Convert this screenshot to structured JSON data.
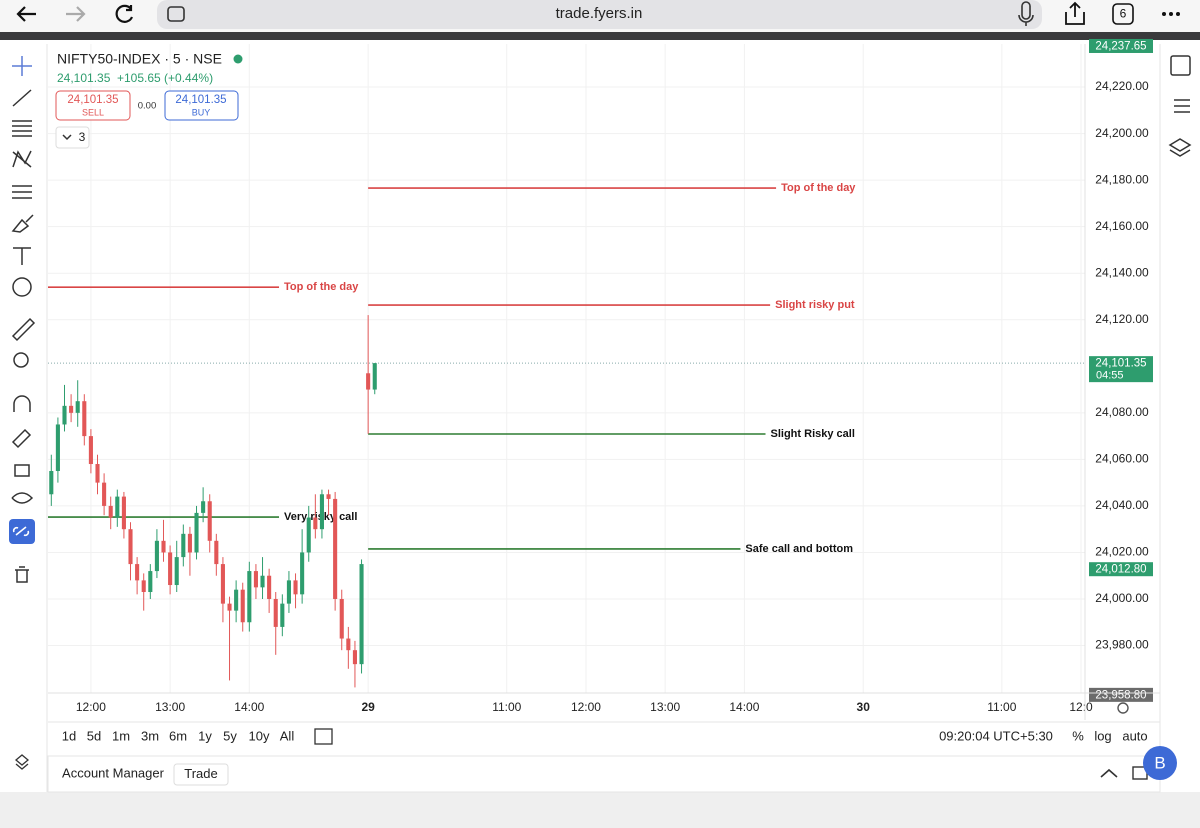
{
  "browser": {
    "url": "trade.fyers.in",
    "tabs": "6"
  },
  "header": {
    "symbol": "NIFTY50-INDEX · 5 · NSE",
    "last": "24,101.35",
    "change": "+105.65 (+0.44%)",
    "sell_price": "24,101.35",
    "sell_label": "SELL",
    "spread": "0.00",
    "buy_price": "24,101.35",
    "buy_label": "BUY",
    "indicators": "3"
  },
  "chart": {
    "type": "candlestick",
    "up_color": "#2e9d6e",
    "down_color": "#e25757",
    "xlim": [
      -48.5,
      108.6
    ],
    "ylim": [
      23959.6,
      24238.5
    ],
    "grid": true,
    "xticks": [
      {
        "value": -42,
        "label": "12:00"
      },
      {
        "value": -30,
        "label": "13:00"
      },
      {
        "value": -18,
        "label": "14:00"
      },
      {
        "value": 0,
        "label": "29"
      },
      {
        "value": 21,
        "label": "11:00"
      },
      {
        "value": 33,
        "label": "12:00"
      },
      {
        "value": 45,
        "label": "13:00"
      },
      {
        "value": 57,
        "label": "14:00"
      },
      {
        "value": 75,
        "label": "30"
      },
      {
        "value": 96,
        "label": "11:00"
      },
      {
        "value": 108,
        "label": "12:0"
      }
    ],
    "yticks": [
      {
        "value": 23980,
        "label": "23,980.00"
      },
      {
        "value": 24000,
        "label": "24,000.00"
      },
      {
        "value": 24020,
        "label": "24,020.00"
      },
      {
        "value": 24040,
        "label": "24,040.00"
      },
      {
        "value": 24060,
        "label": "24,060.00"
      },
      {
        "value": 24080,
        "label": "24,080.00"
      },
      {
        "value": 24120,
        "label": "24,120.00"
      },
      {
        "value": 24140,
        "label": "24,140.00"
      },
      {
        "value": 24160,
        "label": "24,160.00"
      },
      {
        "value": 24180,
        "label": "24,180.00"
      },
      {
        "value": 24200,
        "label": "24,200.00"
      },
      {
        "value": 24220,
        "label": "24,220.00"
      }
    ],
    "price_labels": [
      {
        "value": 24237.65,
        "label": "24,237.65",
        "color": "#2e9d6e"
      },
      {
        "value": 24101.35,
        "label": "24,101.35",
        "sub": "04:55",
        "color": "#2e9d6e"
      },
      {
        "value": 24012.8,
        "label": "24,012.80",
        "color": "#2e9d6e"
      },
      {
        "value": 23958.8,
        "label": "23,958.80",
        "color": "#6b6b6b"
      }
    ],
    "last_price": 24101.35,
    "candles": [
      [
        -48,
        24045,
        24062,
        24040,
        24055
      ],
      [
        -47,
        24055,
        24078,
        24050,
        24075
      ],
      [
        -46,
        24075,
        24092,
        24072,
        24083
      ],
      [
        -45,
        24083,
        24088,
        24076,
        24080
      ],
      [
        -44,
        24080,
        24094,
        24074,
        24085
      ],
      [
        -43,
        24085,
        24088,
        24066,
        24070
      ],
      [
        -42,
        24070,
        24073,
        24054,
        24058
      ],
      [
        -41,
        24058,
        24062,
        24045,
        24050
      ],
      [
        -40,
        24050,
        24054,
        24036,
        24040
      ],
      [
        -39,
        24040,
        24044,
        24030,
        24035
      ],
      [
        -38,
        24035,
        24047,
        24031,
        24044
      ],
      [
        -37,
        24044,
        24046,
        24026,
        24030
      ],
      [
        -36,
        24030,
        24033,
        24008,
        24015
      ],
      [
        -35,
        24015,
        24018,
        24002,
        24008
      ],
      [
        -34,
        24008,
        24011,
        23995,
        24003
      ],
      [
        -33,
        24003,
        24015,
        24000,
        24012
      ],
      [
        -32,
        24012,
        24030,
        24009,
        24025
      ],
      [
        -31,
        24025,
        24034,
        24016,
        24020
      ],
      [
        -30,
        24020,
        24023,
        24002,
        24006
      ],
      [
        -29,
        24006,
        24025,
        24003,
        24018
      ],
      [
        -28,
        24018,
        24032,
        24014,
        24028
      ],
      [
        -27,
        24028,
        24031,
        24010,
        24020
      ],
      [
        -26,
        24020,
        24040,
        24017,
        24037
      ],
      [
        -25,
        24037,
        24048,
        24033,
        24042
      ],
      [
        -24,
        24042,
        24045,
        24020,
        24025
      ],
      [
        -23,
        24025,
        24028,
        24010,
        24015
      ],
      [
        -22,
        24015,
        24018,
        23990,
        23998
      ],
      [
        -21,
        23998,
        24001,
        23965,
        23995
      ],
      [
        -20,
        23995,
        24008,
        23990,
        24004
      ],
      [
        -19,
        24004,
        24007,
        23986,
        23990
      ],
      [
        -18,
        23990,
        24016,
        23986,
        24012
      ],
      [
        -17,
        24012,
        24015,
        24000,
        24005
      ],
      [
        -16,
        24005,
        24018,
        24000,
        24010
      ],
      [
        -15,
        24010,
        24013,
        23994,
        24000
      ],
      [
        -14,
        24000,
        24003,
        23976,
        23988
      ],
      [
        -13,
        23988,
        24002,
        23984,
        23998
      ],
      [
        -12,
        23998,
        24012,
        23994,
        24008
      ],
      [
        -11,
        24008,
        24011,
        23996,
        24002
      ],
      [
        -10,
        24002,
        24030,
        23998,
        24020
      ],
      [
        -9,
        24020,
        24040,
        24016,
        24035
      ],
      [
        -8,
        24035,
        24045,
        24026,
        24030
      ],
      [
        -7,
        24030,
        24047,
        24026,
        24045
      ],
      [
        -6,
        24045,
        24047,
        24036,
        24043
      ],
      [
        -5,
        24043,
        24046,
        23995,
        24000
      ],
      [
        -4,
        24000,
        24004,
        23978,
        23983
      ],
      [
        -3,
        23983,
        23988,
        23970,
        23978
      ],
      [
        -2,
        23978,
        23982,
        23962,
        23972
      ],
      [
        -1,
        23972,
        24017,
        23968,
        24015
      ],
      [
        0,
        24097,
        24122,
        24071,
        24090
      ],
      [
        1,
        24090,
        24101.35,
        24088,
        24101.35
      ]
    ],
    "drawings": [
      {
        "label": "Top of the day",
        "price": 24134,
        "x": [
          -48.5,
          -13.5
        ],
        "color": "#d94545",
        "label_color": "#d94545"
      },
      {
        "label": "Very risky call",
        "price": 24035.2,
        "x": [
          -48.5,
          -13.5
        ],
        "color": "#2e7d32",
        "label_color": "#111111"
      },
      {
        "label": "Top of the day",
        "price": 24176.6,
        "x": [
          0,
          61.8
        ],
        "color": "#d94545",
        "label_color": "#d94545"
      },
      {
        "label": "Slight risky put",
        "price": 24126.3,
        "x": [
          0,
          60.9
        ],
        "color": "#d94545",
        "label_color": "#d94545"
      },
      {
        "label": "Slight Risky call",
        "price": 24070.9,
        "x": [
          0,
          60.2
        ],
        "color": "#2e7d32",
        "label_color": "#111111"
      },
      {
        "label": "Safe call and bottom",
        "price": 24021.5,
        "x": [
          0,
          56.4
        ],
        "color": "#2e7d32",
        "label_color": "#111111"
      }
    ]
  },
  "toolbar": {
    "timeframes": [
      "1d",
      "5d",
      "1m",
      "3m",
      "6m",
      "1y",
      "5y",
      "10y",
      "All"
    ],
    "clock": "09:20:04 UTC+5:30",
    "percent": "%",
    "log": "log",
    "auto": "auto"
  },
  "footer": {
    "account_manager": "Account Manager",
    "trade": "Trade",
    "avatar": "B"
  }
}
